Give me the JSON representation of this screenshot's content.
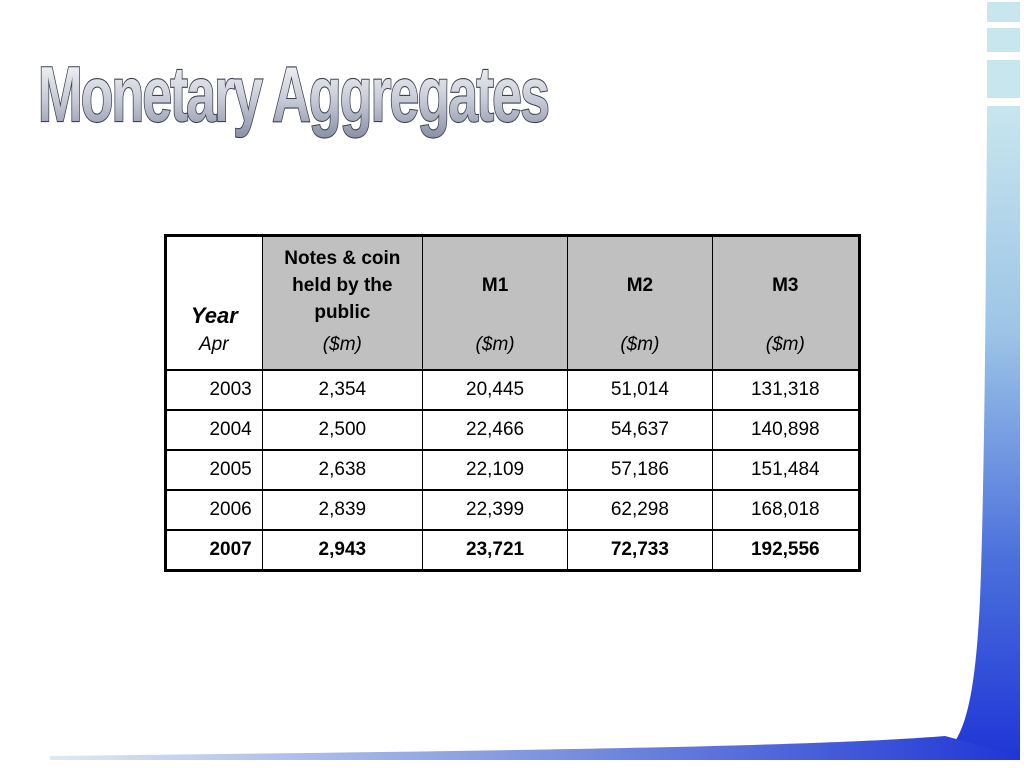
{
  "slide": {
    "title": "Monetary Aggregates"
  },
  "table": {
    "year_header": "Year",
    "month_header": "Apr",
    "columns": [
      {
        "label": "Notes & coin held by the public",
        "unit": "($m)"
      },
      {
        "label": "M1",
        "unit": "($m)"
      },
      {
        "label": "M2",
        "unit": "($m)"
      },
      {
        "label": "M3",
        "unit": "($m)"
      }
    ],
    "rows": [
      {
        "year": "2003",
        "values": [
          "2,354",
          "20,445",
          "51,014",
          "131,318"
        ]
      },
      {
        "year": "2004",
        "values": [
          "2,500",
          "22,466",
          "54,637",
          "140,898"
        ]
      },
      {
        "year": "2005",
        "values": [
          "2,638",
          "22,109",
          "57,186",
          "151,484"
        ]
      },
      {
        "year": "2006",
        "values": [
          "2,839",
          "22,399",
          "62,298",
          "168,018"
        ]
      },
      {
        "year": "2007",
        "values": [
          "2,943",
          "23,721",
          "72,733",
          "192,556"
        ]
      }
    ]
  },
  "colors": {
    "header_fill": "#c0c0c0",
    "accent_blue": "#1f3fd0",
    "accent_light": "#c8e6ee"
  }
}
